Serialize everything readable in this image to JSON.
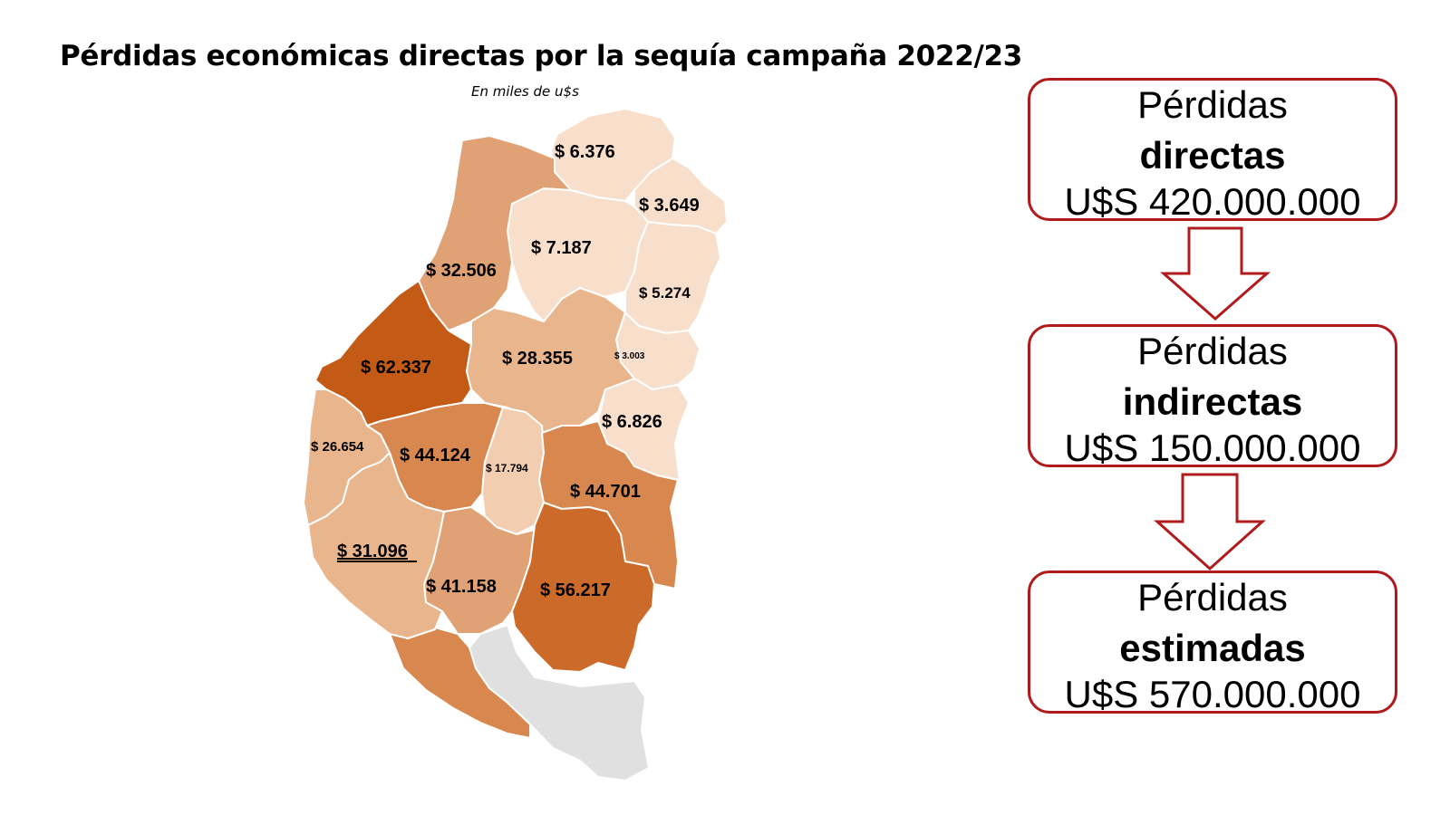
{
  "title": "Pérdidas económicas directas por la sequía campaña 2022/23",
  "subtitle": "En miles de u$s",
  "colors": {
    "very_light": "#f8dfcc",
    "light": "#f3cdb0",
    "medium_light": "#e9b58d",
    "medium": "#e0a174",
    "medium_dark": "#d8874f",
    "dark": "#cc6a2a",
    "darkest": "#c35a16",
    "no_data": "#e0e0e0",
    "box_border": "#b01c1c"
  },
  "map": {
    "departments": [
      {
        "id": "d1",
        "label": "$ 6.376"
      },
      {
        "id": "d2",
        "label": "$ 3.649"
      },
      {
        "id": "d3",
        "label": "$ 7.187"
      },
      {
        "id": "d4",
        "label": "$ 32.506"
      },
      {
        "id": "d5",
        "label": "$ 5.274"
      },
      {
        "id": "d6",
        "label": "$ 62.337"
      },
      {
        "id": "d7",
        "label": "$ 28.355"
      },
      {
        "id": "d8",
        "label": "$ 3.003"
      },
      {
        "id": "d9",
        "label": "$ 6.826"
      },
      {
        "id": "d10",
        "label": "$ 26.654"
      },
      {
        "id": "d11",
        "label": "$ 44.124"
      },
      {
        "id": "d12",
        "label": "$ 17.794"
      },
      {
        "id": "d13",
        "label": "$ 44.701"
      },
      {
        "id": "d14",
        "label": "$ 31.096"
      },
      {
        "id": "d15",
        "label": "$ 41.158"
      },
      {
        "id": "d16",
        "label": "$ 56.217"
      }
    ]
  },
  "summary": {
    "direct": {
      "line1": "Pérdidas",
      "line2": "directas",
      "line3": "U$S 420.000.000"
    },
    "indirect": {
      "line1": "Pérdidas",
      "line2": "indirectas",
      "line3": "U$S 150.000.000"
    },
    "estimated": {
      "line1": "Pérdidas",
      "line2": "estimadas",
      "line3": "U$S 570.000.000"
    }
  }
}
